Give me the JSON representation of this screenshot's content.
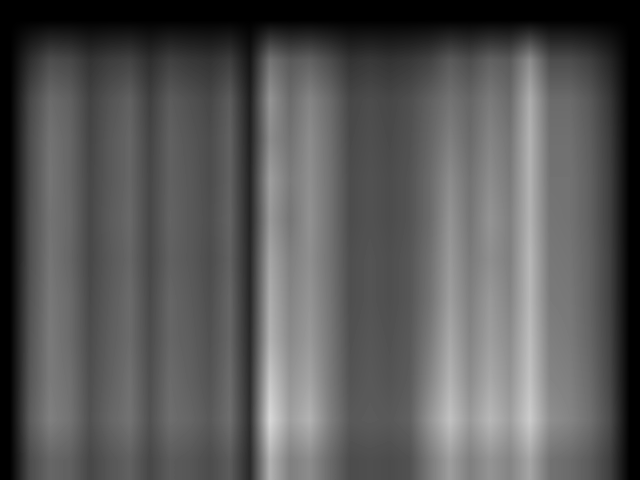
{
  "chart_data": {
    "type": "heatmap",
    "tick_labels": false,
    "color_range": [
      0,
      100
    ],
    "cells": [
      [
        0,
        0,
        0,
        0,
        0,
        0,
        0,
        0,
        0,
        0,
        0,
        0,
        0,
        0,
        0,
        0,
        0,
        0,
        0,
        0,
        0,
        0,
        0,
        0,
        0,
        0,
        0,
        0,
        0,
        0,
        0,
        0
      ],
      [
        0,
        18,
        30,
        28,
        20,
        24,
        26,
        18,
        25,
        22,
        20,
        24,
        8,
        45,
        35,
        38,
        30,
        20,
        22,
        20,
        22,
        26,
        35,
        30,
        38,
        35,
        55,
        30,
        30,
        25,
        15,
        0
      ],
      [
        0,
        28,
        42,
        38,
        26,
        33,
        38,
        25,
        36,
        32,
        28,
        36,
        12,
        58,
        42,
        52,
        42,
        28,
        30,
        28,
        31,
        38,
        45,
        40,
        48,
        42,
        68,
        42,
        42,
        35,
        22,
        0
      ],
      [
        0,
        30,
        45,
        40,
        27,
        35,
        40,
        27,
        38,
        34,
        30,
        38,
        13,
        55,
        45,
        55,
        44,
        29,
        31,
        29,
        32,
        40,
        50,
        42,
        52,
        46,
        70,
        44,
        44,
        37,
        24,
        0
      ],
      [
        0,
        30,
        46,
        40,
        28,
        35,
        40,
        28,
        38,
        35,
        30,
        38,
        14,
        62,
        48,
        56,
        45,
        30,
        32,
        30,
        33,
        42,
        55,
        45,
        55,
        48,
        70,
        45,
        45,
        38,
        25,
        0
      ],
      [
        0,
        31,
        45,
        41,
        28,
        36,
        41,
        28,
        39,
        35,
        31,
        39,
        14,
        60,
        46,
        57,
        45,
        30,
        32,
        30,
        33,
        42,
        58,
        46,
        58,
        50,
        70,
        46,
        45,
        38,
        25,
        0
      ],
      [
        0,
        31,
        46,
        40,
        28,
        35,
        40,
        28,
        38,
        35,
        30,
        38,
        15,
        65,
        50,
        56,
        45,
        31,
        33,
        31,
        34,
        44,
        60,
        48,
        56,
        50,
        72,
        47,
        46,
        39,
        26,
        0
      ],
      [
        0,
        32,
        47,
        42,
        29,
        36,
        42,
        29,
        40,
        36,
        31,
        40,
        15,
        68,
        52,
        58,
        46,
        31,
        33,
        31,
        34,
        45,
        62,
        50,
        60,
        52,
        72,
        48,
        47,
        39,
        26,
        0
      ],
      [
        0,
        33,
        48,
        42,
        30,
        37,
        42,
        30,
        40,
        37,
        32,
        40,
        16,
        70,
        54,
        60,
        47,
        32,
        34,
        32,
        35,
        48,
        66,
        52,
        62,
        55,
        74,
        50,
        48,
        40,
        27,
        0
      ],
      [
        0,
        34,
        48,
        44,
        31,
        38,
        44,
        31,
        42,
        38,
        33,
        42,
        17,
        78,
        58,
        64,
        48,
        33,
        35,
        33,
        36,
        52,
        70,
        55,
        66,
        58,
        76,
        52,
        50,
        42,
        28,
        0
      ],
      [
        0,
        36,
        50,
        45,
        32,
        40,
        45,
        32,
        43,
        40,
        35,
        43,
        18,
        85,
        62,
        70,
        50,
        35,
        36,
        35,
        38,
        58,
        76,
        60,
        72,
        62,
        80,
        56,
        52,
        44,
        30,
        0
      ],
      [
        0,
        30,
        40,
        38,
        28,
        34,
        38,
        28,
        36,
        34,
        30,
        36,
        16,
        70,
        50,
        55,
        42,
        30,
        31,
        30,
        32,
        48,
        62,
        50,
        58,
        52,
        65,
        45,
        42,
        36,
        25,
        0
      ]
    ]
  }
}
